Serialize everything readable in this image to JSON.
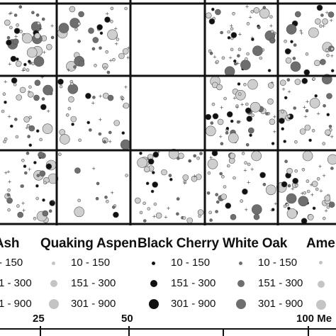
{
  "legend": {
    "species": [
      {
        "name": "Ash",
        "color": "#c4c4c4"
      },
      {
        "name": "Quaking Aspen",
        "color": "#c4c4c4"
      },
      {
        "name": "Black Cherry",
        "color": "#111111"
      },
      {
        "name": "White Oak",
        "color": "#6e6e6e"
      },
      {
        "name": "Amer",
        "color": "#c4c4c4"
      }
    ],
    "size_classes": [
      {
        "range": "10 - 150",
        "partial": "- 150"
      },
      {
        "range": "151 - 300",
        "partial": "1 - 300"
      },
      {
        "range": "301 - 900",
        "partial": "1 - 900"
      }
    ]
  },
  "scale": {
    "labels": [
      "25",
      "50",
      "100 Me"
    ]
  },
  "map": {
    "plot_grid": {
      "rows": 3,
      "cols": 5
    },
    "tree_colors": {
      "light": "#cfcfcf",
      "mid": "#6e6e6e",
      "dark": "#111111"
    }
  }
}
